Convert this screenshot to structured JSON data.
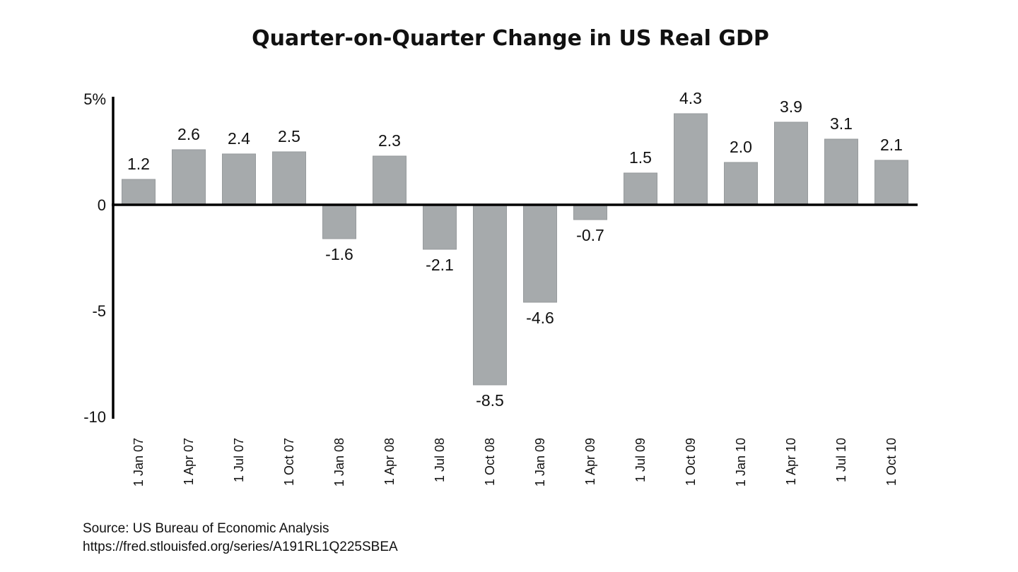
{
  "chart_data": {
    "type": "bar",
    "title": "Quarter-on-Quarter Change in US Real GDP",
    "xlabel": "",
    "ylabel": "",
    "categories": [
      "1 Jan 07",
      "1 Apr 07",
      "1 Jul 07",
      "1 Oct 07",
      "1 Jan 08",
      "1 Apr 08",
      "1 Jul 08",
      "1 Oct 08",
      "1 Jan 09",
      "1 Apr 09",
      "1 Jul 09",
      "1 Oct 09",
      "1 Jan 10",
      "1 Apr 10",
      "1 Jul 10",
      "1 Oct 10"
    ],
    "values": [
      1.2,
      2.6,
      2.4,
      2.5,
      -1.6,
      2.3,
      -2.1,
      -8.5,
      -4.6,
      -0.7,
      1.5,
      4.3,
      2.0,
      3.9,
      3.1,
      2.1
    ],
    "data_labels": [
      "1.2",
      "2.6",
      "2.4",
      "2.5",
      "-1.6",
      "2.3",
      "-2.1",
      "-8.5",
      "-4.6",
      "-0.7",
      "1.5",
      "4.3",
      "2.0",
      "3.9",
      "3.1",
      "2.1"
    ],
    "ylim": [
      -10,
      5
    ],
    "yticks": [
      5,
      0,
      -5,
      -10
    ],
    "ytick_labels": [
      "5%",
      "0",
      "-5",
      "-10"
    ],
    "grid": false,
    "bar_color": "#a6aaac",
    "axis_color": "#000000"
  },
  "source": {
    "line1": "Source: US Bureau of Economic Analysis",
    "line2": "https://fred.stlouisfed.org/series/A191RL1Q225SBEA"
  }
}
